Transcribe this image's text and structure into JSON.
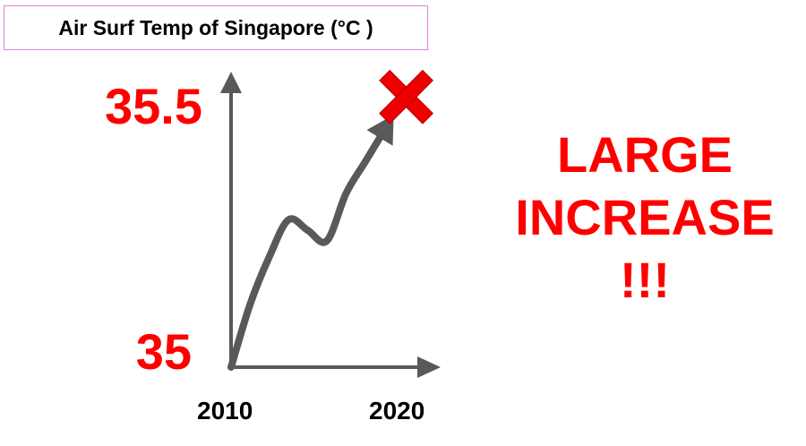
{
  "title": "Air Surf Temp of Singapore (°C )",
  "chart_data": {
    "type": "line",
    "title": "Air Surf Temp of Singapore (°C )",
    "y_tick_labels": [
      "35.5",
      "35"
    ],
    "x_tick_labels": [
      "2010",
      "2020"
    ],
    "ylim": [
      35,
      35.5
    ],
    "xlim": [
      2010,
      2020
    ],
    "series": [
      {
        "x": [
          2010,
          2011,
          2012,
          2013,
          2014,
          2015,
          2016,
          2017,
          2018
        ],
        "values": [
          35.0,
          35.12,
          35.21,
          35.28,
          35.26,
          35.24,
          35.33,
          35.39,
          35.45
        ]
      }
    ],
    "end_marker": "red-x",
    "colors": {
      "line": "#595959",
      "axis": "#595959",
      "marker": "#ee0000"
    }
  },
  "callout": {
    "line1": "LARGE",
    "line2": "INCREASE",
    "line3": "!!!"
  }
}
